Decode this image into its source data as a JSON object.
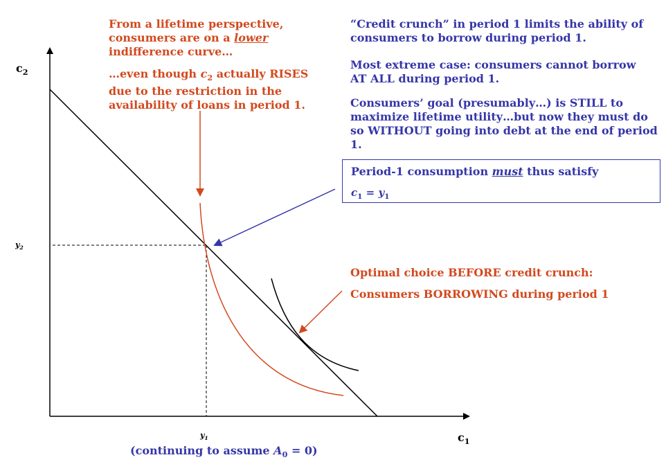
{
  "axes": {
    "y_label_main": "c",
    "y_label_sub": "2",
    "x_label_main": "c",
    "x_label_sub": "1",
    "y_tick_main": "y",
    "y_tick_sub": "2",
    "x_tick_main": "y",
    "x_tick_sub": "1"
  },
  "footnote": {
    "prefix": "(continuing to assume ",
    "var_main": "A",
    "var_sub": "0",
    "suffix": " = 0)"
  },
  "left_text": {
    "line1": "From a lifetime perspective,",
    "line2_prefix": "consumers are on a ",
    "line2_emph": "lower",
    "line3": "indifference curve…",
    "p2_prefix": "…even though ",
    "p2_var_main": "c",
    "p2_var_sub": "2",
    "p2_line1_suffix": " actually RISES",
    "p2_line2": "due to the restriction in the",
    "p2_line3": "availability of loans in period 1."
  },
  "right_text": {
    "crunch_line1": "“Credit crunch” in period 1 limits the ability of",
    "crunch_line2": "consumers to borrow during period 1.",
    "extreme_line1": "Most extreme case:  consumers cannot borrow",
    "extreme_line2": "AT ALL during period 1.",
    "goal_line1": "Consumers’ goal (presumably…) is STILL to",
    "goal_line2": "maximize lifetime utility…but now they must do",
    "goal_line3": "so WITHOUT going into debt at the end of period",
    "goal_line4": "1."
  },
  "constraint_box": {
    "prefix": "Period-1 consumption ",
    "emph": "must",
    "suffix": " thus satisfy",
    "eq_lhs_main": "c",
    "eq_lhs_sub": "1",
    "eq_mid": " = ",
    "eq_rhs_main": "y",
    "eq_rhs_sub": "1"
  },
  "optimal_text": {
    "line1": "Optimal choice BEFORE credit crunch:",
    "line2": "Consumers BORROWING during period 1"
  },
  "colors": {
    "orange": "#D2491E",
    "blue": "#3536A8",
    "black": "#000000"
  }
}
